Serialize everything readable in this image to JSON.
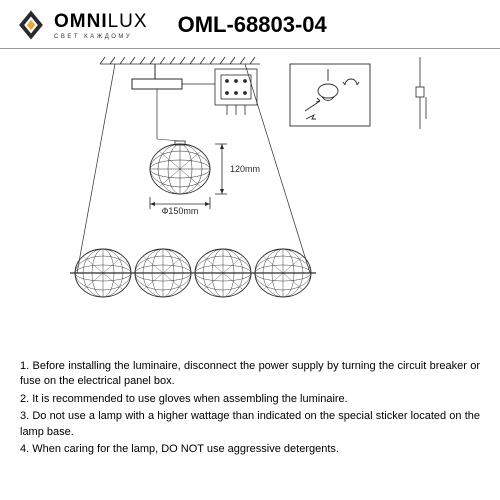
{
  "brand": {
    "name_main": "OMNI",
    "name_sub": "LUX",
    "tagline": "СВЕТ КАЖДОМУ",
    "accent_color": "#e8a838",
    "text_color": "#2a2a2a"
  },
  "model": "OML-68803-04",
  "diagram": {
    "sphere_width_label": "Ф150mm",
    "sphere_height_label": "120mm",
    "stroke": "#2a2a2a",
    "ceiling_hatch": "#2a2a2a",
    "sphere_count": 4
  },
  "instructions": {
    "i1": "1. Before installing the luminaire, disconnect the power supply by turning the circuit breaker or fuse on the electrical panel box.",
    "i2": "2. It is recommended to use gloves when assembling the luminaire.",
    "i3": "3. Do not use a lamp with a higher wattage than indicated on the special sticker located on the lamp base.",
    "i4": "4. When caring for the lamp, DO NOT use aggressive detergents."
  }
}
